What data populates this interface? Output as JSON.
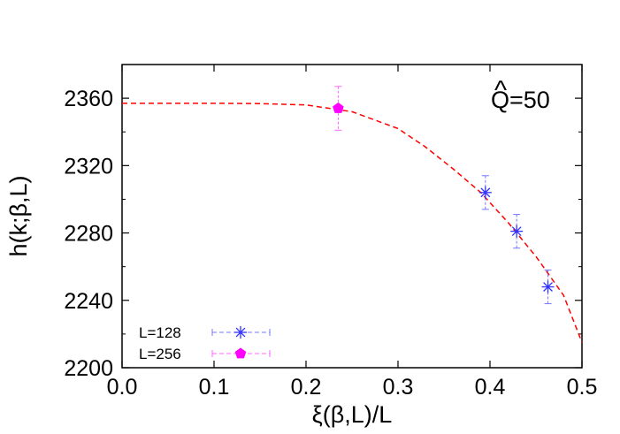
{
  "chart_data": {
    "type": "scatter",
    "title": "",
    "xlabel": "ξ(β,L)/L",
    "ylabel": "h(k;β,L)",
    "xlim": [
      0.0,
      0.5
    ],
    "ylim": [
      2200,
      2380
    ],
    "xticks": [
      0.0,
      0.1,
      0.2,
      0.3,
      0.4,
      0.5
    ],
    "xtick_labels": [
      "0.0",
      "0.1",
      "0.2",
      "0.3",
      "0.4",
      "0.5"
    ],
    "yticks": [
      2200,
      2240,
      2280,
      2320,
      2360
    ],
    "ytick_labels": [
      "2200",
      "2240",
      "2280",
      "2320",
      "2360"
    ],
    "grid": false,
    "legend_position": "bottom-left",
    "annotation": {
      "hat": "^",
      "text": "Q=50"
    },
    "series": [
      {
        "name": "L=128",
        "marker": "asterisk",
        "color": "#3333ff",
        "error_color": "#7777ff",
        "points": [
          {
            "x": 0.395,
            "y": 2304,
            "yerr": 10
          },
          {
            "x": 0.429,
            "y": 2281,
            "yerr": 10
          },
          {
            "x": 0.463,
            "y": 2248,
            "yerr": 10
          }
        ]
      },
      {
        "name": "L=256",
        "marker": "pentagon",
        "color": "#ff00ff",
        "error_color": "#ff66ff",
        "points": [
          {
            "x": 0.235,
            "y": 2354,
            "yerr": 13
          }
        ]
      }
    ],
    "fit_curve": {
      "style": "dashed",
      "color": "#ff0000",
      "x": [
        0.0,
        0.05,
        0.1,
        0.15,
        0.2,
        0.25,
        0.3,
        0.33,
        0.36,
        0.39,
        0.42,
        0.45,
        0.48,
        0.5
      ],
      "y": [
        2357,
        2357,
        2357,
        2356.8,
        2356,
        2352,
        2342,
        2331,
        2318,
        2304,
        2286,
        2266,
        2243,
        2215
      ]
    }
  }
}
